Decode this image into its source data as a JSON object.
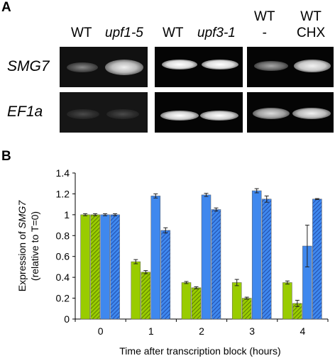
{
  "panel_a": {
    "letter": "A",
    "groups": [
      {
        "lanes": [
          "WT",
          "upf1-5"
        ],
        "italic": [
          false,
          true
        ]
      },
      {
        "lanes": [
          "WT",
          "upf3-1"
        ],
        "italic": [
          false,
          true
        ]
      },
      {
        "lanes": [
          "WT\n-",
          "WT\nCHX"
        ],
        "italic": [
          false,
          false
        ]
      }
    ],
    "rows": [
      "SMG7",
      "EF1a"
    ]
  },
  "panel_b": {
    "letter": "B",
    "ylabel_line1": "Expression of SMG7",
    "ylabel_line2": "(relative to T=0)",
    "xlabel": "Time after transcription block (hours)"
  },
  "colors": {
    "green": "#99cc00",
    "blue": "#3f88ee",
    "gel_bg": "#050505"
  },
  "chart_data": {
    "type": "bar",
    "categories": [
      "0",
      "1",
      "2",
      "3",
      "4"
    ],
    "ylim": [
      0,
      1.4
    ],
    "yticks": [
      "0",
      "0.2",
      "0.4",
      "0.6",
      "0.8",
      "1",
      "1.2",
      "1.4"
    ],
    "xlabel": "Time after transcription block (hours)",
    "ylabel": "Expression of SMG7 (relative to T=0)",
    "series": [
      {
        "values": [
          1.0,
          0.55,
          0.35,
          0.35,
          0.35
        ],
        "errors": [
          0.01,
          0.02,
          0.01,
          0.03,
          0.015
        ],
        "color": "#99cc00",
        "hatched": false
      },
      {
        "values": [
          1.0,
          0.45,
          0.3,
          0.2,
          0.15
        ],
        "errors": [
          0.01,
          0.015,
          0.01,
          0.01,
          0.03
        ],
        "color": "#99cc00",
        "hatched": true
      },
      {
        "values": [
          1.0,
          1.18,
          1.19,
          1.23,
          0.7
        ],
        "errors": [
          0.01,
          0.02,
          0.015,
          0.02,
          0.2
        ],
        "color": "#3f88ee",
        "hatched": false
      },
      {
        "values": [
          1.0,
          0.85,
          1.05,
          1.15,
          1.15
        ],
        "errors": [
          0.01,
          0.025,
          0.015,
          0.03,
          0.005
        ],
        "color": "#3f88ee",
        "hatched": true
      }
    ]
  }
}
